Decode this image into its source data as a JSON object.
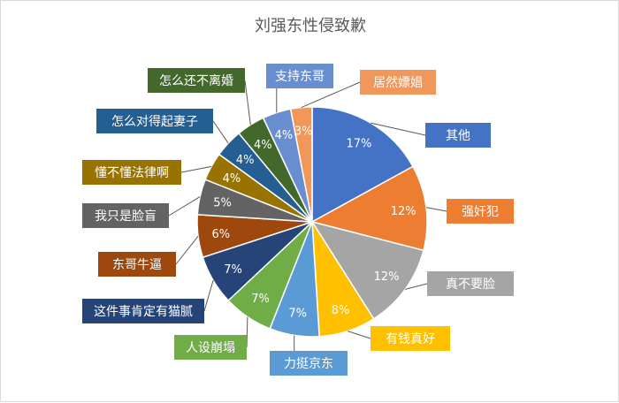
{
  "chart_data": {
    "type": "pie",
    "title": "刘强东性侵致歉",
    "start_angle_deg": 0,
    "direction": "clockwise",
    "data_label_format": "percent",
    "slices": [
      {
        "label": "其他",
        "value": 17,
        "color": "#4472C4"
      },
      {
        "label": "强奸犯",
        "value": 12,
        "color": "#ED7D31"
      },
      {
        "label": "真不要脸",
        "value": 12,
        "color": "#A5A5A5"
      },
      {
        "label": "有钱真好",
        "value": 8,
        "color": "#FFC000"
      },
      {
        "label": "力挺京东",
        "value": 7,
        "color": "#5B9BD5"
      },
      {
        "label": "人设崩塌",
        "value": 7,
        "color": "#70AD47"
      },
      {
        "label": "这件事肯定有猫腻",
        "value": 7,
        "color": "#264478"
      },
      {
        "label": "东哥牛逼",
        "value": 6,
        "color": "#9E480E"
      },
      {
        "label": "我只是脸盲",
        "value": 5,
        "color": "#636363"
      },
      {
        "label": "懂不懂法律啊",
        "value": 4,
        "color": "#997300"
      },
      {
        "label": "怎么对得起妻子",
        "value": 4,
        "color": "#255E91"
      },
      {
        "label": "怎么还不离婚",
        "value": 4,
        "color": "#43682B"
      },
      {
        "label": "支持东哥",
        "value": 4,
        "color": "#698ED0"
      },
      {
        "label": "居然嫖娼",
        "value": 3,
        "color": "#F1975A"
      }
    ]
  }
}
